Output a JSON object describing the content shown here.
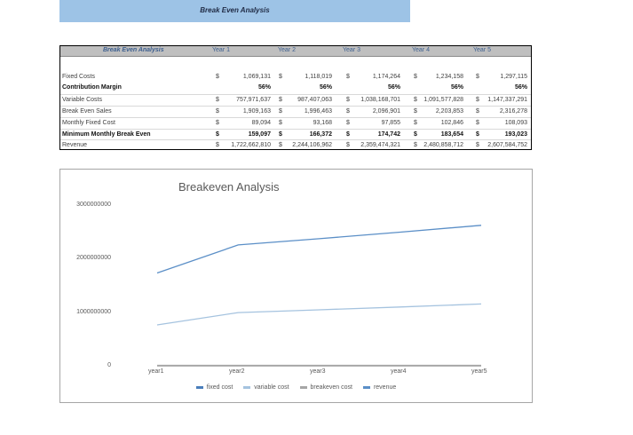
{
  "banner": {
    "title": "Break Even Analysis"
  },
  "table": {
    "header": [
      "Break Even Analysis",
      "Year 1",
      "Year 2",
      "Year 3",
      "Year 4",
      "Year 5"
    ],
    "rows": [
      {
        "label": "Fixed Costs",
        "bold": false,
        "currency": true,
        "values": [
          "1,069,131",
          "1,118,019",
          "1,174,264",
          "1,234,158",
          "1,297,115"
        ]
      },
      {
        "label": "Contribution Margin",
        "bold": true,
        "currency": false,
        "values": [
          "56%",
          "56%",
          "56%",
          "56%",
          "56%"
        ]
      },
      {
        "label": "Variable Costs",
        "bold": false,
        "currency": true,
        "values": [
          "757,971,637",
          "987,407,063",
          "1,038,168,701",
          "1,091,577,828",
          "1,147,337,291"
        ]
      },
      {
        "label": "Break Even Sales",
        "bold": false,
        "currency": true,
        "values": [
          "1,909,163",
          "1,996,463",
          "2,096,901",
          "2,203,853",
          "2,316,278"
        ]
      },
      {
        "label": "Monthly Fixed Cost",
        "bold": false,
        "currency": true,
        "values": [
          "89,094",
          "93,168",
          "97,855",
          "102,846",
          "108,093"
        ]
      },
      {
        "label": "Minimum Monthly Break Even",
        "bold": true,
        "currency": true,
        "values": [
          "159,097",
          "166,372",
          "174,742",
          "183,654",
          "193,023"
        ]
      },
      {
        "label": "Revenue",
        "bold": false,
        "currency": true,
        "values": [
          "1,722,662,810",
          "2,244,106,962",
          "2,359,474,321",
          "2,480,858,712",
          "2,607,584,752"
        ]
      }
    ],
    "currency_symbol": "$"
  },
  "chart_data": {
    "type": "line",
    "title": "Breakeven Analysis",
    "categories": [
      "year1",
      "year2",
      "year3",
      "year4",
      "year5"
    ],
    "series": [
      {
        "name": "fixed cost",
        "color": "#4a7ebb",
        "values": [
          1069131,
          1118019,
          1174264,
          1234158,
          1297115
        ]
      },
      {
        "name": "variable cost",
        "color": "#a5c3df",
        "values": [
          757971637,
          987407063,
          1038168701,
          1091577828,
          1147337291
        ]
      },
      {
        "name": "breakeven cost",
        "color": "#a6a6a6",
        "values": [
          1909163,
          1996463,
          2096901,
          2203853,
          2316278
        ]
      },
      {
        "name": "revenue",
        "color": "#5b8fc7",
        "values": [
          1722662810,
          2244106962,
          2359474321,
          2480858712,
          2607584752
        ]
      }
    ],
    "yticks": [
      "3000000000",
      "2000000000",
      "1000000000",
      "0"
    ],
    "ylim": [
      0,
      3000000000
    ],
    "xlabel": "",
    "ylabel": "",
    "grid": false,
    "legend_position": "bottom"
  }
}
